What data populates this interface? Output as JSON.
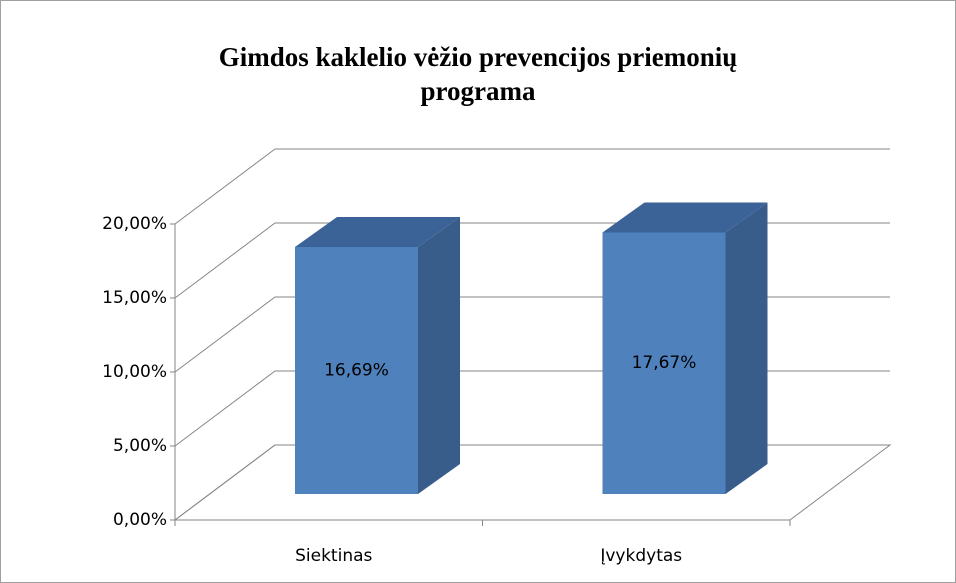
{
  "chart_data": {
    "type": "bar3d",
    "title": "Gimdos kaklelio vėžio prevencijos priemonių programa",
    "categories": [
      "Siektinas",
      "Įvykdytas"
    ],
    "values": [
      16.69,
      17.67
    ],
    "value_labels": [
      "16,69%",
      "17,67%"
    ],
    "color": "#4f81bd",
    "ylim": [
      0,
      20
    ],
    "yticks": [
      {
        "value": 0,
        "label": "0,00%"
      },
      {
        "value": 5,
        "label": "5,00%"
      },
      {
        "value": 10,
        "label": "10,00%"
      },
      {
        "value": 15,
        "label": "15,00%"
      },
      {
        "value": 20,
        "label": "20,00%"
      }
    ],
    "grid": true
  }
}
